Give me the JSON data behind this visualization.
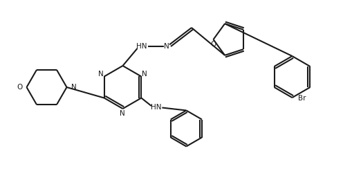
{
  "bg_color": "#ffffff",
  "line_color": "#1a1a1a",
  "lw": 1.5,
  "figsize": [
    5.1,
    2.47
  ],
  "dpi": 100,
  "xlim": [
    0,
    10.2
  ],
  "ylim": [
    0,
    4.94
  ]
}
